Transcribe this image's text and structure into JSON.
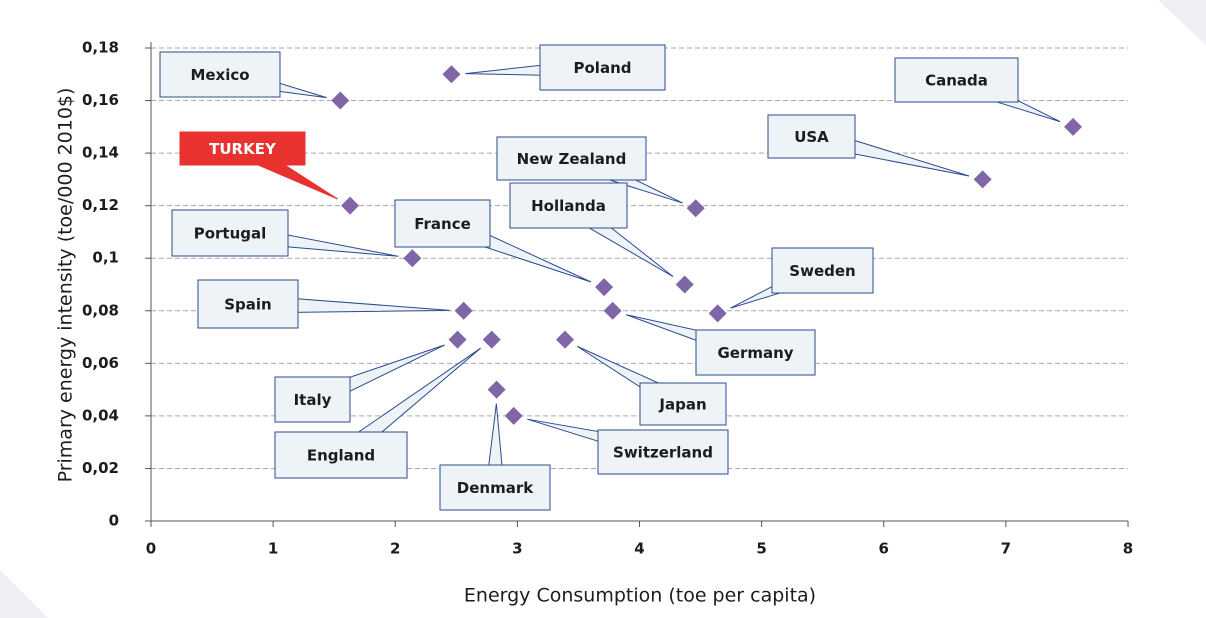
{
  "chart_data": {
    "type": "scatter",
    "x_label": "Energy Consumption (toe per capita)",
    "y_label": "Primary energy intensity (toe/000 2010$)",
    "labels": [
      "Mexico",
      "Poland",
      "Canada",
      "USA",
      "TURKEY",
      "New Zealand",
      "Portugal",
      "France",
      "Hollanda",
      "Sweden",
      "Spain",
      "Germany",
      "Italy",
      "England",
      "Japan",
      "Denmark",
      "Switzerland"
    ],
    "x": [
      1.55,
      2.46,
      7.55,
      6.81,
      1.63,
      4.46,
      2.14,
      3.71,
      4.37,
      4.64,
      2.56,
      3.78,
      2.51,
      2.79,
      3.39,
      2.83,
      2.97
    ],
    "values": [
      0.16,
      0.17,
      0.15,
      0.13,
      0.12,
      0.119,
      0.1,
      0.089,
      0.09,
      0.079,
      0.08,
      0.08,
      0.069,
      0.069,
      0.069,
      0.05,
      0.04
    ],
    "color": "#8066a6",
    "xlim": [
      0,
      8
    ],
    "xticks": [
      0,
      1,
      2,
      3,
      4,
      5,
      6,
      7,
      8
    ],
    "ylim": [
      0,
      0.18
    ],
    "yticks": [
      0,
      {
        "value": 0.02,
        "label": "0,02"
      },
      {
        "value": 0.04,
        "label": "0,04"
      },
      {
        "value": 0.06,
        "label": "0,06"
      },
      {
        "value": 0.08,
        "label": "0,08"
      },
      {
        "value": 0.1,
        "label": "0,1"
      },
      {
        "value": 0.12,
        "label": "0,12"
      },
      {
        "value": 0.14,
        "label": "0,14"
      },
      {
        "value": 0.16,
        "label": "0,16"
      },
      {
        "value": 0.18,
        "label": "0,18"
      }
    ],
    "grid": true
  }
}
